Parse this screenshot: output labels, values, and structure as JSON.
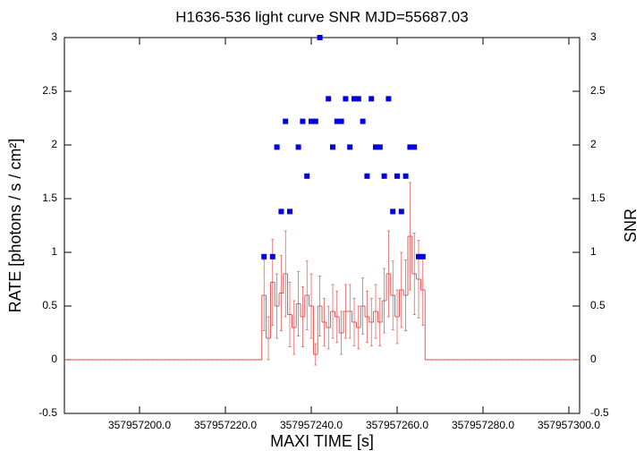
{
  "chart_data": {
    "type": "light-curve",
    "title": "H1636-536 light curve  SNR MJD=55687.03",
    "x_label": "MAXI TIME [s]",
    "y_label": "RATE [photons / s / cm²]",
    "y2_label": "SNR",
    "x": [
      357957183,
      357957184,
      357957185,
      357957186,
      357957187,
      357957188,
      357957189,
      357957190,
      357957191,
      357957192,
      357957193,
      357957194,
      357957195,
      357957196,
      357957197,
      357957198,
      357957199,
      357957200,
      357957201,
      357957202,
      357957203,
      357957204,
      357957205,
      357957206,
      357957207,
      357957208,
      357957209,
      357957210,
      357957211,
      357957212,
      357957213,
      357957214,
      357957215,
      357957216,
      357957217,
      357957218,
      357957219,
      357957220,
      357957221,
      357957222,
      357957223,
      357957224,
      357957225,
      357957226,
      357957227,
      357957228,
      357957229,
      357957230,
      357957231,
      357957232,
      357957233,
      357957234,
      357957235,
      357957236,
      357957237,
      357957238,
      357957239,
      357957240,
      357957241,
      357957242,
      357957243,
      357957244,
      357957245,
      357957246,
      357957247,
      357957248,
      357957249,
      357957250,
      357957251,
      357957252,
      357957253,
      357957254,
      357957255,
      357957256,
      357957257,
      357957258,
      357957259,
      357957260,
      357957261,
      357957262,
      357957263,
      357957264,
      357957265,
      357957266,
      357957267,
      357957268,
      357957269,
      357957270,
      357957271,
      357957272,
      357957273,
      357957274,
      357957275,
      357957276,
      357957277,
      357957278,
      357957279,
      357957280,
      357957281,
      357957282,
      357957283,
      357957284,
      357957285,
      357957286,
      357957287,
      357957288,
      357957289,
      357957290,
      357957291,
      357957292,
      357957293,
      357957294,
      357957295,
      357957296,
      357957297,
      357957298,
      357957299,
      357957300,
      357957301,
      357957302
    ],
    "series": [
      {
        "color": "#e03030",
        "values": [
          0,
          0,
          0,
          0,
          0,
          0,
          0,
          0,
          0,
          0,
          0,
          0,
          0,
          0,
          0,
          0,
          0,
          0,
          0,
          0,
          0,
          0,
          0,
          0,
          0,
          0,
          0,
          0,
          0,
          0,
          0,
          0,
          0,
          0,
          0,
          0,
          0,
          0,
          0,
          0,
          0,
          0,
          0,
          0,
          0,
          0,
          0.6,
          0.2,
          0.72,
          0.5,
          0.62,
          0.8,
          0.42,
          0.3,
          0.52,
          0.4,
          0.6,
          0.5,
          0.05,
          0.5,
          0.35,
          0.3,
          0.45,
          0.4,
          0.25,
          0.45,
          0.45,
          0.35,
          0.3,
          0.5,
          0.4,
          0.35,
          0.45,
          0.35,
          0.55,
          0.8,
          0.6,
          0.4,
          0.65,
          0.6,
          1.15,
          0.8,
          0.75,
          0.65,
          0,
          0,
          0,
          0,
          0,
          0,
          0,
          0,
          0,
          0,
          0,
          0,
          0,
          0,
          0,
          0,
          0,
          0,
          0,
          0,
          0,
          0,
          0,
          0,
          0,
          0,
          0,
          0,
          0,
          0,
          0,
          0,
          0,
          0,
          0,
          0
        ],
        "errors": [
          0,
          0,
          0,
          0,
          0,
          0,
          0,
          0,
          0,
          0,
          0,
          0,
          0,
          0,
          0,
          0,
          0,
          0,
          0,
          0,
          0,
          0,
          0,
          0,
          0,
          0,
          0,
          0,
          0,
          0,
          0,
          0,
          0,
          0,
          0,
          0,
          0,
          0,
          0,
          0,
          0,
          0,
          0,
          0,
          0,
          0,
          0.33,
          0.2,
          0.4,
          0.3,
          0.35,
          0.4,
          0.3,
          0.25,
          0.3,
          0.28,
          0.32,
          0.3,
          0.1,
          0.28,
          0.22,
          0.2,
          0.25,
          0.24,
          0.2,
          0.25,
          0.25,
          0.22,
          0.2,
          0.26,
          0.24,
          0.22,
          0.25,
          0.22,
          0.3,
          0.4,
          0.32,
          0.25,
          0.35,
          0.33,
          0.5,
          0.38,
          0.36,
          0.33,
          0,
          0,
          0,
          0,
          0,
          0,
          0,
          0,
          0,
          0,
          0,
          0,
          0,
          0,
          0,
          0,
          0,
          0,
          0,
          0,
          0,
          0,
          0,
          0,
          0,
          0,
          0,
          0,
          0,
          0,
          0,
          0,
          0,
          0,
          0,
          0
        ]
      },
      {
        "axis": "y2",
        "color": "#0000e0",
        "x": [
          357957229,
          357957231,
          357957232,
          357957233,
          357957234,
          357957235,
          357957237,
          357957238,
          357957239,
          357957240,
          357957241,
          357957242,
          357957244,
          357957245,
          357957246,
          357957247,
          357957248,
          357957249,
          357957250,
          357957251,
          357957252,
          357957253,
          357957254,
          357957255,
          357957256,
          357957257,
          357957258,
          357957259,
          357957260,
          357957261,
          357957262,
          357957263,
          357957264,
          357957265,
          357957266
        ],
        "values": [
          0.96,
          0.96,
          1.98,
          1.38,
          2.22,
          1.38,
          1.98,
          2.22,
          1.71,
          2.22,
          2.22,
          3,
          2.43,
          1.98,
          2.22,
          2.22,
          2.43,
          1.98,
          2.43,
          2.43,
          2.22,
          1.71,
          2.43,
          1.98,
          1.98,
          1.71,
          2.43,
          1.38,
          1.71,
          1.38,
          1.71,
          1.98,
          1.98,
          0.96,
          0.96
        ]
      }
    ],
    "xlim": [
      357957182.5,
      357957302.5
    ],
    "xticks": [
      {
        "value": 357957200,
        "label": "357957200.0"
      },
      {
        "value": 357957220,
        "label": "357957220.0"
      },
      {
        "value": 357957240,
        "label": "357957240.0"
      },
      {
        "value": 357957260,
        "label": "357957260.0"
      },
      {
        "value": 357957280,
        "label": "357957280.0"
      },
      {
        "value": 357957300,
        "label": "357957300.0"
      }
    ],
    "ylim": [
      -0.5,
      3
    ],
    "yticks": [
      -0.5,
      0,
      0.5,
      1,
      1.5,
      2,
      2.5,
      3
    ],
    "y2lim": [
      -0.5,
      3
    ],
    "y2ticks": [
      -0.5,
      0,
      0.5,
      1,
      1.5,
      2,
      2.5,
      3
    ]
  }
}
